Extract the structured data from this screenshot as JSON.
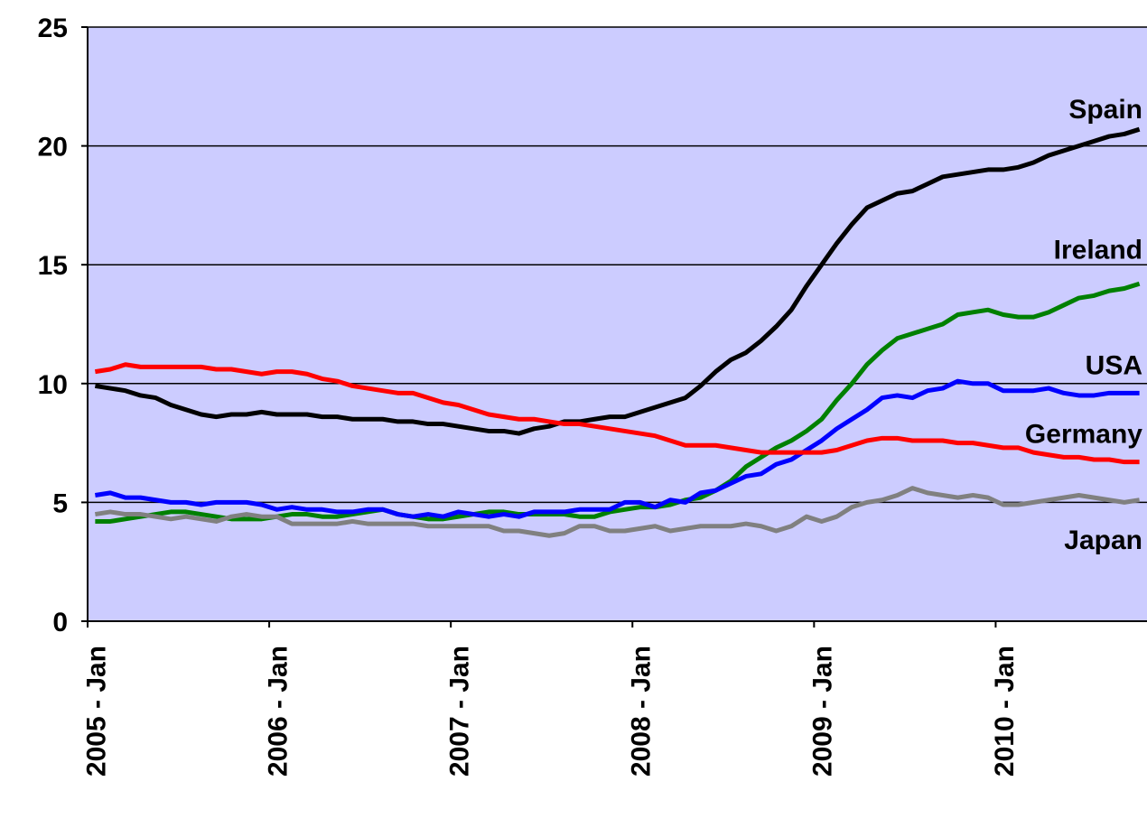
{
  "chart_data": {
    "type": "line",
    "categories": [
      "2005 - Jan",
      null,
      null,
      null,
      null,
      null,
      null,
      null,
      null,
      null,
      null,
      null,
      "2006 - Jan",
      null,
      null,
      null,
      null,
      null,
      null,
      null,
      null,
      null,
      null,
      null,
      "2007 - Jan",
      null,
      null,
      null,
      null,
      null,
      null,
      null,
      null,
      null,
      null,
      null,
      "2008 - Jan",
      null,
      null,
      null,
      null,
      null,
      null,
      null,
      null,
      null,
      null,
      null,
      "2009 - Jan",
      null,
      null,
      null,
      null,
      null,
      null,
      null,
      null,
      null,
      null,
      null,
      "2010 - Jan",
      null,
      null,
      null,
      null,
      null,
      null,
      null,
      null,
      null
    ],
    "series": [
      {
        "name": "Spain",
        "color": "#000000",
        "values": [
          9.9,
          9.8,
          9.7,
          9.5,
          9.4,
          9.1,
          8.9,
          8.7,
          8.6,
          8.7,
          8.7,
          8.8,
          8.7,
          8.7,
          8.7,
          8.6,
          8.6,
          8.5,
          8.5,
          8.5,
          8.4,
          8.4,
          8.3,
          8.3,
          8.2,
          8.1,
          8.0,
          8.0,
          7.9,
          8.1,
          8.2,
          8.4,
          8.4,
          8.5,
          8.6,
          8.6,
          8.8,
          9.0,
          9.2,
          9.4,
          9.9,
          10.5,
          11.0,
          11.3,
          11.8,
          12.4,
          13.1,
          14.1,
          15.0,
          15.9,
          16.7,
          17.4,
          17.7,
          18.0,
          18.1,
          18.4,
          18.7,
          18.8,
          18.9,
          19.0,
          19.0,
          19.1,
          19.3,
          19.6,
          19.8,
          20.0,
          20.2,
          20.4,
          20.5,
          20.7
        ]
      },
      {
        "name": "Ireland",
        "color": "#008000",
        "values": [
          4.2,
          4.2,
          4.3,
          4.4,
          4.5,
          4.6,
          4.6,
          4.5,
          4.4,
          4.3,
          4.3,
          4.3,
          4.4,
          4.5,
          4.5,
          4.4,
          4.4,
          4.5,
          4.6,
          4.7,
          4.5,
          4.4,
          4.3,
          4.3,
          4.4,
          4.5,
          4.6,
          4.6,
          4.5,
          4.5,
          4.5,
          4.5,
          4.4,
          4.4,
          4.6,
          4.7,
          4.8,
          4.8,
          4.9,
          5.1,
          5.2,
          5.5,
          5.9,
          6.5,
          6.9,
          7.3,
          7.6,
          8.0,
          8.5,
          9.3,
          10.0,
          10.8,
          11.4,
          11.9,
          12.1,
          12.3,
          12.5,
          12.9,
          13.0,
          13.1,
          12.9,
          12.8,
          12.8,
          13.0,
          13.3,
          13.6,
          13.7,
          13.9,
          14.0,
          14.2
        ]
      },
      {
        "name": "USA",
        "color": "#0000ff",
        "values": [
          5.3,
          5.4,
          5.2,
          5.2,
          5.1,
          5.0,
          5.0,
          4.9,
          5.0,
          5.0,
          5.0,
          4.9,
          4.7,
          4.8,
          4.7,
          4.7,
          4.6,
          4.6,
          4.7,
          4.7,
          4.5,
          4.4,
          4.5,
          4.4,
          4.6,
          4.5,
          4.4,
          4.5,
          4.4,
          4.6,
          4.6,
          4.6,
          4.7,
          4.7,
          4.7,
          5.0,
          5.0,
          4.8,
          5.1,
          5.0,
          5.4,
          5.5,
          5.8,
          6.1,
          6.2,
          6.6,
          6.8,
          7.2,
          7.6,
          8.1,
          8.5,
          8.9,
          9.4,
          9.5,
          9.4,
          9.7,
          9.8,
          10.1,
          10.0,
          10.0,
          9.7,
          9.7,
          9.7,
          9.8,
          9.6,
          9.5,
          9.5,
          9.6,
          9.6,
          9.6
        ]
      },
      {
        "name": "Germany",
        "color": "#ff0000",
        "values": [
          10.5,
          10.6,
          10.8,
          10.7,
          10.7,
          10.7,
          10.7,
          10.7,
          10.6,
          10.6,
          10.5,
          10.4,
          10.5,
          10.5,
          10.4,
          10.2,
          10.1,
          9.9,
          9.8,
          9.7,
          9.6,
          9.6,
          9.4,
          9.2,
          9.1,
          8.9,
          8.7,
          8.6,
          8.5,
          8.5,
          8.4,
          8.3,
          8.3,
          8.2,
          8.1,
          8.0,
          7.9,
          7.8,
          7.6,
          7.4,
          7.4,
          7.4,
          7.3,
          7.2,
          7.1,
          7.1,
          7.1,
          7.1,
          7.1,
          7.2,
          7.4,
          7.6,
          7.7,
          7.7,
          7.6,
          7.6,
          7.6,
          7.5,
          7.5,
          7.4,
          7.3,
          7.3,
          7.1,
          7.0,
          6.9,
          6.9,
          6.8,
          6.8,
          6.7,
          6.7
        ]
      },
      {
        "name": "Japan",
        "color": "#808080",
        "values": [
          4.5,
          4.6,
          4.5,
          4.5,
          4.4,
          4.3,
          4.4,
          4.3,
          4.2,
          4.4,
          4.5,
          4.4,
          4.4,
          4.1,
          4.1,
          4.1,
          4.1,
          4.2,
          4.1,
          4.1,
          4.1,
          4.1,
          4.0,
          4.0,
          4.0,
          4.0,
          4.0,
          3.8,
          3.8,
          3.7,
          3.6,
          3.7,
          4.0,
          4.0,
          3.8,
          3.8,
          3.9,
          4.0,
          3.8,
          3.9,
          4.0,
          4.0,
          4.0,
          4.1,
          4.0,
          3.8,
          4.0,
          4.4,
          4.2,
          4.4,
          4.8,
          5.0,
          5.1,
          5.3,
          5.6,
          5.4,
          5.3,
          5.2,
          5.3,
          5.2,
          4.9,
          4.9,
          5.0,
          5.1,
          5.2,
          5.3,
          5.2,
          5.1,
          5.0,
          5.1
        ]
      }
    ],
    "ylim": [
      0,
      25
    ],
    "yticks": [
      0,
      5,
      10,
      15,
      20,
      25
    ],
    "grid": true,
    "plot_background": "#ccccff"
  }
}
